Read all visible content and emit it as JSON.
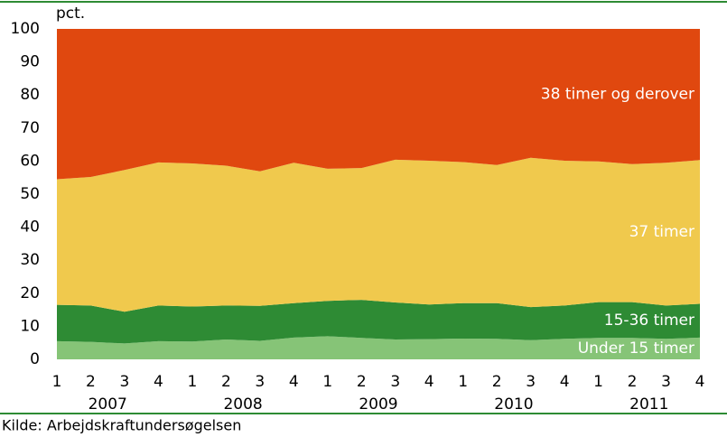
{
  "chart_data": {
    "type": "stacked_area",
    "y_unit_label": "pct.",
    "source": "Kilde: Arbejdskraftundersøgelsen",
    "categories": [
      "1",
      "2",
      "3",
      "4",
      "1",
      "2",
      "3",
      "4",
      "1",
      "2",
      "3",
      "4",
      "1",
      "2",
      "3",
      "4",
      "1",
      "2",
      "3",
      "4"
    ],
    "years": [
      "2007",
      "2008",
      "2009",
      "2010",
      "2011"
    ],
    "ylim": [
      0,
      100
    ],
    "yticks": [
      0,
      10,
      20,
      30,
      40,
      50,
      60,
      70,
      80,
      90,
      100
    ],
    "series": [
      {
        "name": "Under 15 timer",
        "color": "#86c477",
        "values": [
          5.5,
          5.3,
          4.8,
          5.5,
          5.4,
          6.0,
          5.6,
          6.6,
          7.0,
          6.5,
          6.0,
          6.1,
          6.3,
          6.2,
          5.8,
          6.2,
          6.5,
          6.5,
          6.2,
          6.6
        ]
      },
      {
        "name": "15-36 timer",
        "color": "#2e8b34",
        "values": [
          11.0,
          11.0,
          9.6,
          10.8,
          10.6,
          10.3,
          10.6,
          10.4,
          10.7,
          11.5,
          11.2,
          10.5,
          10.7,
          10.8,
          10.0,
          10.1,
          10.8,
          10.8,
          10.1,
          10.2
        ]
      },
      {
        "name": "37 timer",
        "color": "#f0c94d",
        "values": [
          38.0,
          38.9,
          42.9,
          43.3,
          43.3,
          42.3,
          40.7,
          42.5,
          40.0,
          39.9,
          43.2,
          43.5,
          42.7,
          41.8,
          45.2,
          43.8,
          42.6,
          41.8,
          43.2,
          43.5
        ]
      },
      {
        "name": "38 timer og derover",
        "color": "#e0480f",
        "values": [
          45.5,
          44.8,
          42.7,
          40.4,
          40.7,
          41.4,
          43.1,
          40.5,
          42.3,
          42.1,
          39.6,
          39.9,
          40.3,
          41.2,
          39.0,
          39.9,
          40.1,
          40.9,
          40.5,
          39.7
        ]
      }
    ]
  }
}
